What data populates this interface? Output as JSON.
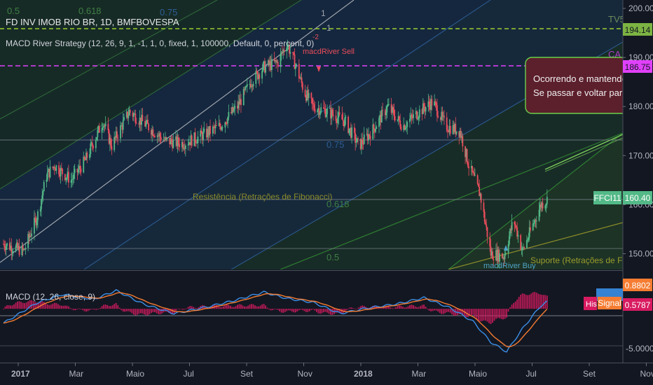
{
  "header": {
    "symbol": "FD INV IMOB RIO BR, 1D, BMFBOVESPA",
    "strategy": "MACD River Strategy (12, 26, 9, 1, -1, 1, 0, fixed, 1, 100000, Default, 0, percent, 0)"
  },
  "macd_header": "MACD (12, 26, close, 9)",
  "colors": {
    "background": "#131722",
    "candle_up": "#53b987",
    "candle_down": "#eb4d5c",
    "macd_line": "#3a8ee6",
    "signal_line": "#f57c31",
    "hist": "#d81b60",
    "fib_green": "#2e7d32",
    "fib_blue": "#1e4f8a",
    "tv5_line": "#9acd32",
    "ca_line": "#e040fb"
  },
  "price_axis": {
    "ticks": [
      "200.00",
      "190.00",
      "180.00",
      "170.00",
      "160.00",
      "150.00"
    ],
    "ticks_values": [
      200,
      190,
      180,
      170,
      160,
      150
    ]
  },
  "macd_axis": {
    "ticks": [
      "-5.0000"
    ],
    "ticks_values": [
      -5
    ]
  },
  "time_axis": {
    "labels": [
      "2017",
      "Mar",
      "Maio",
      "Jul",
      "Set",
      "Nov",
      "2018",
      "Mar",
      "Maio",
      "Jul",
      "Set",
      "Nov"
    ]
  },
  "labels": {
    "tv5": "TV5",
    "ca": "CA",
    "tv5_value": "194.14",
    "ca_value": "186.75",
    "ffci11_tag": "FFCI11",
    "ffci11_value": "160.40",
    "fib_0_75_top": "0.75",
    "fib_0_75_mid": "0.75",
    "fib_0_618_top": "0.618",
    "fib_0_618_mid": "0.618",
    "fib_0_5_top": "0.5",
    "fib_0_5_mid": "0.5",
    "resistance": "Resistência (Retrações de Fibonacci)",
    "support": "Suporte (Retrações de Fibo",
    "sell_signal": "macdRiver Sell",
    "buy_signal": "macdRiver Buy",
    "sell_mark": "-2",
    "num_1_a": "1",
    "num_1_b": "1",
    "note_line1": "Ocorrendo e mantendo",
    "note_line2": "Se passar e voltar para",
    "macd_value": "0.8802",
    "signal_value": "0.5787",
    "signal_tag": "Signal",
    "hist_tag": "His"
  },
  "chart_data": {
    "type": "candlestick",
    "price_ylim": [
      147.5,
      201
    ],
    "macd_ylim": [
      -6.5,
      4.5
    ],
    "x_range": [
      "2017-01-02",
      "2018-11-30"
    ],
    "price_anchors": [
      [
        "2017-01-02",
        152
      ],
      [
        "2017-01-25",
        150.5
      ],
      [
        "2017-02-10",
        158
      ],
      [
        "2017-02-20",
        166
      ],
      [
        "2017-03-01",
        168
      ],
      [
        "2017-03-20",
        165
      ],
      [
        "2017-04-05",
        169
      ],
      [
        "2017-04-25",
        177
      ],
      [
        "2017-05-05",
        172
      ],
      [
        "2017-05-25",
        179
      ],
      [
        "2017-06-15",
        176
      ],
      [
        "2017-07-05",
        173
      ],
      [
        "2017-07-25",
        172.5
      ],
      [
        "2017-08-15",
        174
      ],
      [
        "2017-09-05",
        176
      ],
      [
        "2017-09-25",
        180
      ],
      [
        "2017-10-10",
        185
      ],
      [
        "2017-10-25",
        188
      ],
      [
        "2017-11-10",
        189
      ],
      [
        "2017-11-20",
        193
      ],
      [
        "2017-12-01",
        188
      ],
      [
        "2017-12-10",
        183
      ],
      [
        "2017-12-20",
        180
      ],
      [
        "2018-01-05",
        179
      ],
      [
        "2018-01-25",
        177
      ],
      [
        "2018-02-10",
        172
      ],
      [
        "2018-02-25",
        175
      ],
      [
        "2018-03-15",
        180
      ],
      [
        "2018-04-01",
        176
      ],
      [
        "2018-04-20",
        179
      ],
      [
        "2018-05-05",
        181
      ],
      [
        "2018-05-20",
        176
      ],
      [
        "2018-06-05",
        175
      ],
      [
        "2018-06-15",
        168
      ],
      [
        "2018-06-28",
        162
      ],
      [
        "2018-07-10",
        150
      ],
      [
        "2018-07-25",
        149.5
      ],
      [
        "2018-08-05",
        157
      ],
      [
        "2018-08-15",
        150.5
      ],
      [
        "2018-08-25",
        155
      ],
      [
        "2018-09-05",
        160
      ],
      [
        "2018-09-12",
        161
      ]
    ],
    "macd_anchors": [
      [
        "2017-01-02",
        -1.8
      ],
      [
        "2017-02-10",
        0.8
      ],
      [
        "2017-03-10",
        1.8
      ],
      [
        "2017-04-15",
        1.2
      ],
      [
        "2017-05-10",
        2.3
      ],
      [
        "2017-06-10",
        0.6
      ],
      [
        "2017-07-15",
        -0.6
      ],
      [
        "2017-08-20",
        0.2
      ],
      [
        "2017-09-20",
        1.0
      ],
      [
        "2017-10-25",
        2.1
      ],
      [
        "2017-11-20",
        1.3
      ],
      [
        "2017-12-20",
        0.8
      ],
      [
        "2018-01-20",
        -0.6
      ],
      [
        "2018-02-20",
        0.1
      ],
      [
        "2018-03-25",
        0.6
      ],
      [
        "2018-04-25",
        1.4
      ],
      [
        "2018-05-25",
        0.1
      ],
      [
        "2018-06-20",
        -1.6
      ],
      [
        "2018-07-10",
        -4.2
      ],
      [
        "2018-07-28",
        -5.4
      ],
      [
        "2018-08-15",
        -2.5
      ],
      [
        "2018-09-05",
        0.4
      ],
      [
        "2018-09-12",
        0.88
      ]
    ]
  }
}
